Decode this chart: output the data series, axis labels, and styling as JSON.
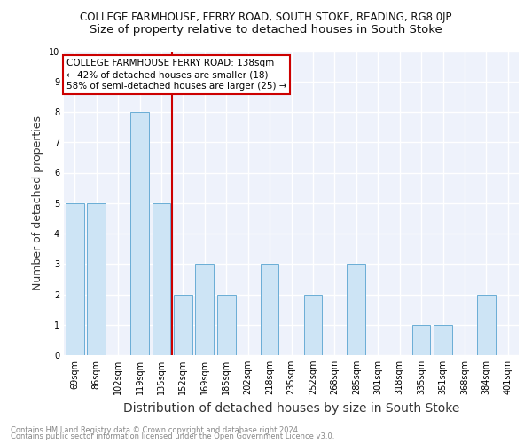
{
  "title_line1": "COLLEGE FARMHOUSE, FERRY ROAD, SOUTH STOKE, READING, RG8 0JP",
  "title_line2": "Size of property relative to detached houses in South Stoke",
  "xlabel": "Distribution of detached houses by size in South Stoke",
  "ylabel": "Number of detached properties",
  "categories": [
    "69sqm",
    "86sqm",
    "102sqm",
    "119sqm",
    "135sqm",
    "152sqm",
    "169sqm",
    "185sqm",
    "202sqm",
    "218sqm",
    "235sqm",
    "252sqm",
    "268sqm",
    "285sqm",
    "301sqm",
    "318sqm",
    "335sqm",
    "351sqm",
    "368sqm",
    "384sqm",
    "401sqm"
  ],
  "values": [
    5,
    5,
    0,
    8,
    5,
    2,
    3,
    2,
    0,
    3,
    0,
    2,
    0,
    3,
    0,
    0,
    1,
    1,
    0,
    2,
    0
  ],
  "bar_color": "#cde4f5",
  "bar_edge_color": "#6aadd5",
  "ref_line_color": "#cc0000",
  "annotation_text": "COLLEGE FARMHOUSE FERRY ROAD: 138sqm\n← 42% of detached houses are smaller (18)\n58% of semi-detached houses are larger (25) →",
  "annotation_box_color": "#ffffff",
  "annotation_box_edge_color": "#cc0000",
  "ylim": [
    0,
    10
  ],
  "yticks": [
    0,
    1,
    2,
    3,
    4,
    5,
    6,
    7,
    8,
    9,
    10
  ],
  "plot_bg_color": "#eef2fb",
  "footer_line1": "Contains HM Land Registry data © Crown copyright and database right 2024.",
  "footer_line2": "Contains public sector information licensed under the Open Government Licence v3.0.",
  "grid_color": "#ffffff",
  "title_fontsize": 8.5,
  "subtitle_fontsize": 9.5,
  "ylabel_fontsize": 9,
  "xlabel_fontsize": 10,
  "tick_fontsize": 7,
  "footer_fontsize": 6,
  "annotation_fontsize": 7.5
}
